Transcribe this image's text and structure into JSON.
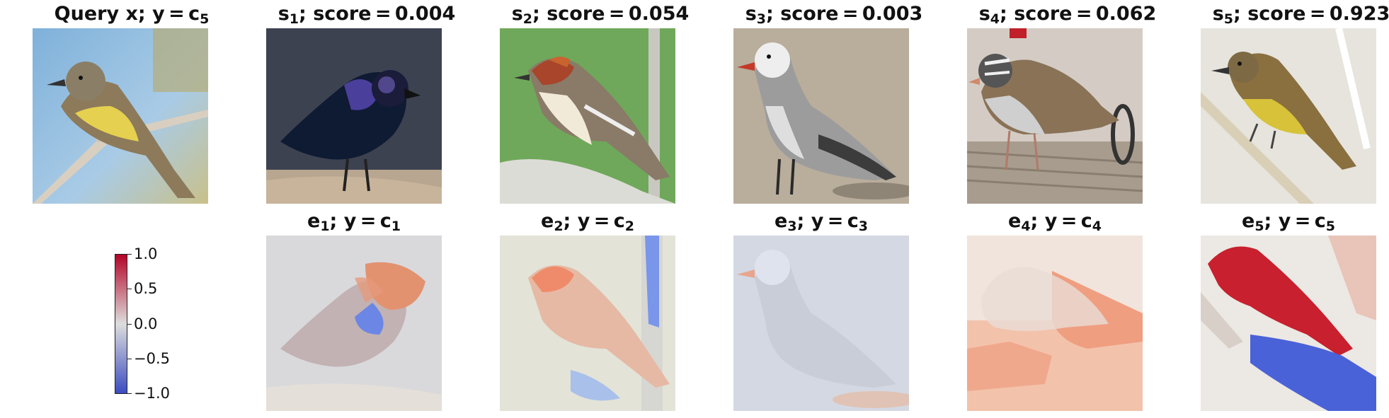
{
  "query": {
    "title_main": "Query x; y = c",
    "title_sub": "5",
    "image": "flycatcher-yellow-belly"
  },
  "similar": [
    {
      "label": "s",
      "index": "1",
      "score_text": "; score = 0.004",
      "image": "black-iridescent-bird"
    },
    {
      "label": "s",
      "index": "2",
      "score_text": "; score = 0.054",
      "image": "bay-breasted-warbler"
    },
    {
      "label": "s",
      "index": "3",
      "score_text": "; score = 0.003",
      "image": "gray-gull"
    },
    {
      "label": "s",
      "index": "4",
      "score_text": "; score = 0.062",
      "image": "white-crowned-sparrow"
    },
    {
      "label": "s",
      "index": "5",
      "score_text": "; score = 0.923",
      "image": "flycatcher-on-branch"
    }
  ],
  "explanations": [
    {
      "label": "e",
      "index": "1",
      "class_text": "; y = c",
      "class_index": "1"
    },
    {
      "label": "e",
      "index": "2",
      "class_text": "; y = c",
      "class_index": "2"
    },
    {
      "label": "e",
      "index": "3",
      "class_text": "; y = c",
      "class_index": "3"
    },
    {
      "label": "e",
      "index": "4",
      "class_text": "; y = c",
      "class_index": "4"
    },
    {
      "label": "e",
      "index": "5",
      "class_text": "; y = c",
      "class_index": "5"
    }
  ],
  "colorbar": {
    "colormap": "coolwarm",
    "ticks": [
      "1.0",
      "0.5",
      "0.0",
      "−0.5",
      "−1.0"
    ],
    "colors": {
      "high": "#b40426",
      "mid": "#dddddd",
      "low": "#3b4cc0"
    }
  }
}
